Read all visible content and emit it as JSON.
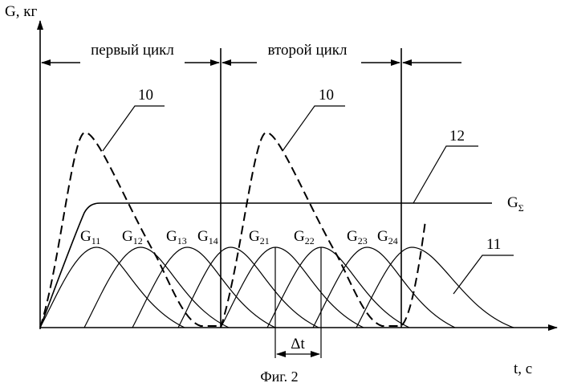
{
  "axes": {
    "y_label": "G, кг",
    "x_label": "t, с"
  },
  "cycles": {
    "first": "первый цикл",
    "second": "второй цикл"
  },
  "callouts": {
    "dashed_curve_1": "10",
    "dashed_curve_2": "10",
    "total_line": "12",
    "individual_curves": "11"
  },
  "total_label": {
    "base": "G",
    "sub": "Σ"
  },
  "pulses": [
    {
      "base": "G",
      "sub": "11"
    },
    {
      "base": "G",
      "sub": "12"
    },
    {
      "base": "G",
      "sub": "13"
    },
    {
      "base": "G",
      "sub": "14"
    },
    {
      "base": "G",
      "sub": "21"
    },
    {
      "base": "G",
      "sub": "22"
    },
    {
      "base": "G",
      "sub": "23"
    },
    {
      "base": "G",
      "sub": "24"
    }
  ],
  "interval_label": "Δt",
  "caption": "Фиг. 2"
}
